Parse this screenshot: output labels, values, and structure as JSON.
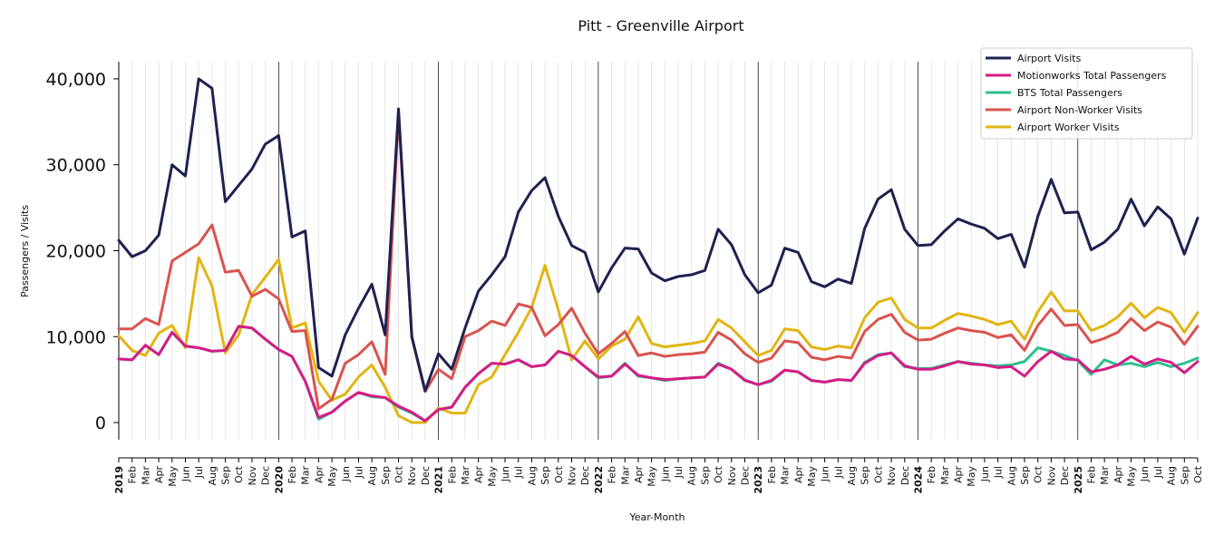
{
  "chart_data": {
    "type": "line",
    "title": "Pitt - Greenville Airport",
    "xlabel": "Year-Month",
    "ylabel": "Passengers / Visits",
    "ylim": [
      -2000,
      42000
    ],
    "yticks": [
      0,
      10000,
      20000,
      30000,
      40000
    ],
    "ytick_labels": [
      "0",
      "10,000",
      "20,000",
      "30,000",
      "40,000"
    ],
    "grid": "vertical monthly lines, darker lines at each January",
    "legend_position": "top-right",
    "year_labels": [
      "2019",
      "2020",
      "2021",
      "2022",
      "2023",
      "2024",
      "2025"
    ],
    "month_labels": [
      "Feb",
      "Mar",
      "Apr",
      "May",
      "Jun",
      "Jul",
      "Aug",
      "Sep",
      "Oct",
      "Nov",
      "Dec"
    ],
    "x_start": "2019-01",
    "x_end": "2025-10",
    "series": [
      {
        "name": "Airport Visits",
        "color": "#1f2150",
        "values": [
          21200,
          19300,
          20000,
          21800,
          30000,
          28700,
          40000,
          38900,
          25700,
          27600,
          29500,
          32400,
          33400,
          21600,
          22300,
          6400,
          5400,
          10200,
          13300,
          16100,
          10200,
          36500,
          10000,
          3700,
          8000,
          6200,
          11000,
          15300,
          17200,
          19300,
          24500,
          27000,
          28500,
          24000,
          20600,
          19800,
          15200,
          18000,
          20300,
          20200,
          17400,
          16500,
          17000,
          17200,
          17700,
          22500,
          20700,
          17200,
          15100,
          16000,
          20300,
          19800,
          16400,
          15800,
          16700,
          16200,
          22600,
          26000,
          27100,
          22500,
          20600,
          20700,
          22300,
          23700,
          23100,
          22600,
          21400,
          21900,
          18100,
          24000,
          28300,
          24400,
          24500,
          20100,
          21000,
          22500,
          26000,
          22900,
          25100,
          23700,
          19600,
          23800
        ]
      },
      {
        "name": "Motionworks Total Passengers",
        "color": "#d61c86",
        "values": [
          7400,
          7300,
          9000,
          7900,
          10500,
          8900,
          8700,
          8300,
          8400,
          11200,
          11000,
          9700,
          8500,
          7700,
          4800,
          600,
          1200,
          2500,
          3500,
          3100,
          2900,
          1900,
          1200,
          200,
          1500,
          1800,
          4100,
          5700,
          6900,
          6800,
          7300,
          6500,
          6700,
          8300,
          7800,
          6500,
          5300,
          5400,
          6800,
          5500,
          5200,
          5000,
          5100,
          5200,
          5300,
          6800,
          6200,
          4900,
          4400,
          4900,
          6100,
          5900,
          4900,
          4700,
          5000,
          4900,
          6900,
          7800,
          8100,
          6600,
          6200,
          6200,
          6600,
          7100,
          6800,
          6700,
          6400,
          6500,
          5400,
          7100,
          8300,
          7400,
          7300,
          5900,
          6200,
          6700,
          7700,
          6800,
          7400,
          7000,
          5800,
          7100
        ]
      },
      {
        "name": "BTS Total Passengers",
        "color": "#2cc08d",
        "values": [
          7400,
          7300,
          9000,
          7900,
          10500,
          8900,
          8700,
          8300,
          8400,
          11200,
          11000,
          9700,
          8500,
          7700,
          4800,
          400,
          1200,
          2500,
          3500,
          3000,
          2900,
          1800,
          1100,
          200,
          1500,
          1800,
          4100,
          5700,
          6900,
          6800,
          7300,
          6500,
          6700,
          8300,
          7800,
          6500,
          5200,
          5400,
          6900,
          5400,
          5200,
          4900,
          5100,
          5200,
          5300,
          6900,
          6200,
          5000,
          4400,
          4800,
          6100,
          5900,
          4900,
          4700,
          5000,
          4900,
          7000,
          7900,
          8100,
          6500,
          6300,
          6300,
          6700,
          7100,
          6900,
          6700,
          6600,
          6700,
          7100,
          8700,
          8300,
          7800,
          7200,
          5600,
          7300,
          6700,
          6900,
          6500,
          7000,
          6500,
          6900,
          7500
        ]
      },
      {
        "name": "Airport Non-Worker Visits",
        "color": "#d9534f",
        "values": [
          10900,
          10900,
          12100,
          11400,
          18800,
          19800,
          20800,
          23000,
          17500,
          17700,
          14700,
          15500,
          14400,
          10600,
          10700,
          1600,
          2700,
          6900,
          7900,
          9400,
          5600,
          36000,
          9900,
          3600,
          6200,
          5100,
          10000,
          10700,
          11800,
          11300,
          13800,
          13400,
          10100,
          11400,
          13300,
          10400,
          8000,
          9200,
          10600,
          7800,
          8100,
          7700,
          7900,
          8000,
          8200,
          10500,
          9600,
          8000,
          7000,
          7500,
          9500,
          9300,
          7600,
          7300,
          7700,
          7500,
          10600,
          12000,
          12600,
          10500,
          9600,
          9700,
          10400,
          11000,
          10700,
          10500,
          9900,
          10200,
          8400,
          11300,
          13200,
          11300,
          11400,
          9300,
          9800,
          10500,
          12100,
          10700,
          11700,
          11100,
          9100,
          11200
        ]
      },
      {
        "name": "Airport Worker Visits",
        "color": "#e1b513",
        "values": [
          10100,
          8400,
          7800,
          10400,
          11300,
          8700,
          19200,
          15900,
          8100,
          10200,
          14900,
          16900,
          19000,
          11000,
          11600,
          4800,
          2600,
          3300,
          5300,
          6700,
          4100,
          800,
          0,
          0,
          1700,
          1100,
          1100,
          4400,
          5300,
          7900,
          10500,
          13400,
          18300,
          13100,
          7300,
          9500,
          7400,
          8900,
          9700,
          12300,
          9200,
          8800,
          9000,
          9200,
          9500,
          12000,
          11000,
          9400,
          7800,
          8400,
          10900,
          10700,
          8800,
          8500,
          8900,
          8700,
          12200,
          14000,
          14500,
          12000,
          11000,
          11000,
          11900,
          12700,
          12400,
          12000,
          11400,
          11800,
          9700,
          12900,
          15200,
          13000,
          13000,
          10700,
          11300,
          12300,
          13900,
          12200,
          13400,
          12800,
          10500,
          12800
        ]
      }
    ]
  }
}
